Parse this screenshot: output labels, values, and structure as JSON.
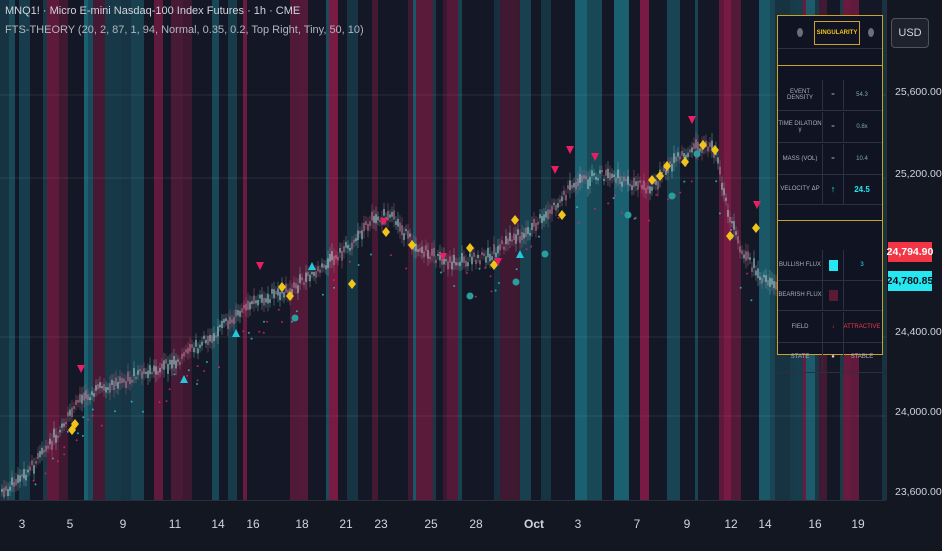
{
  "header": {
    "title": "MNQ1! · Micro E-mini Nasdaq-100 Index Futures · 1h · CME",
    "indicator": "FTS-THEORY (20, 2, 87, 1, 94, Normal, 0.35, 0.2, Top Right, Tiny, 50, 10)"
  },
  "price_axis": {
    "currency_button": "USD",
    "ticks": [
      "25,600.00",
      "25,200.00",
      "24,400.00",
      "24,000.00",
      "23,600.00"
    ],
    "last_price_red": "24,794.90",
    "last_price_cyan": "24,780.85"
  },
  "time_axis": {
    "ticks": [
      "3",
      "5",
      "9",
      "11",
      "14",
      "16",
      "18",
      "21",
      "23",
      "25",
      "28",
      "Oct",
      "3",
      "7",
      "9",
      "12",
      "14",
      "16",
      "19"
    ]
  },
  "panel": {
    "header": {
      "left": "",
      "title": "SINGULARITY",
      "right": ""
    },
    "rows1": [
      {
        "label": "EVENT DENSITY",
        "sep": "=",
        "value": "54.3"
      },
      {
        "label": "TIME DILATION γ",
        "sep": "=",
        "value": "0.8x"
      },
      {
        "label": "MASS (VOL)",
        "sep": "=",
        "value": "10.4"
      },
      {
        "label": "VELOCITY ΔP",
        "sep": "↑",
        "value": "24.5"
      }
    ],
    "rows2": [
      {
        "label": "BULLISH FLUX",
        "sep": "",
        "value": "3"
      },
      {
        "label": "BEARISH FLUX",
        "sep": "",
        "value": ""
      },
      {
        "label": "FIELD",
        "sep": "↓",
        "value": "ATTRACTIVE"
      },
      {
        "label": "STATE",
        "sep": "●",
        "value": "STABLE"
      }
    ]
  },
  "colors": {
    "background": "#141826",
    "bull": "#26c6da",
    "bear": "#e91e63",
    "signal": "#f0c419",
    "gold": "#c9a227"
  }
}
